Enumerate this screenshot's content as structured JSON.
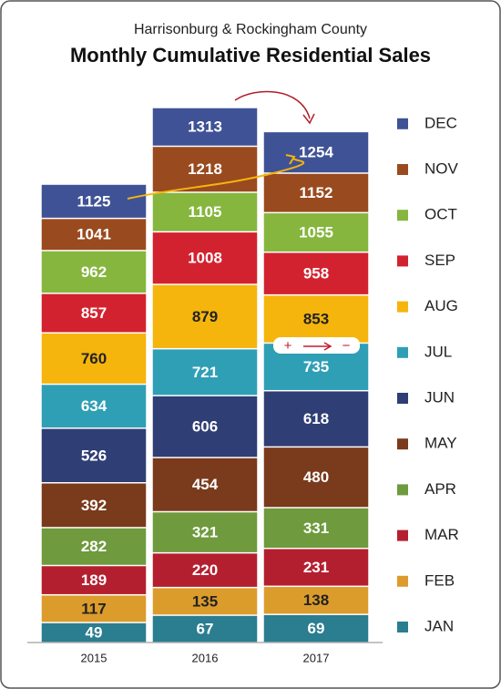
{
  "chart_data": {
    "type": "bar",
    "stacked": true,
    "subtitle": "Harrisonburg & Rockingham County",
    "title": "Monthly Cumulative Residential Sales",
    "categories": [
      "2015",
      "2016",
      "2017"
    ],
    "series": [
      {
        "name": "JAN",
        "color": "#2b7d90",
        "values": [
          49,
          67,
          69
        ]
      },
      {
        "name": "FEB",
        "color": "#dc9c2c",
        "values": [
          117,
          135,
          138
        ]
      },
      {
        "name": "MAR",
        "color": "#b41f2f",
        "values": [
          189,
          220,
          231
        ]
      },
      {
        "name": "APR",
        "color": "#6f9a3d",
        "values": [
          282,
          321,
          331
        ]
      },
      {
        "name": "MAY",
        "color": "#7a3a1c",
        "values": [
          392,
          454,
          480
        ]
      },
      {
        "name": "JUN",
        "color": "#2f3e75",
        "values": [
          526,
          606,
          618
        ]
      },
      {
        "name": "JUL",
        "color": "#2f9fb5",
        "values": [
          634,
          721,
          735
        ]
      },
      {
        "name": "AUG",
        "color": "#f5b50d",
        "values": [
          760,
          879,
          853
        ]
      },
      {
        "name": "SEP",
        "color": "#d3222f",
        "values": [
          857,
          1008,
          958
        ]
      },
      {
        "name": "OCT",
        "color": "#86b63e",
        "values": [
          962,
          1105,
          1055
        ]
      },
      {
        "name": "NOV",
        "color": "#9a4a1f",
        "values": [
          1041,
          1218,
          1152
        ]
      },
      {
        "name": "DEC",
        "color": "#3f5295",
        "values": [
          1125,
          1313,
          1254
        ]
      }
    ],
    "annotations": [
      "+",
      "−"
    ]
  }
}
